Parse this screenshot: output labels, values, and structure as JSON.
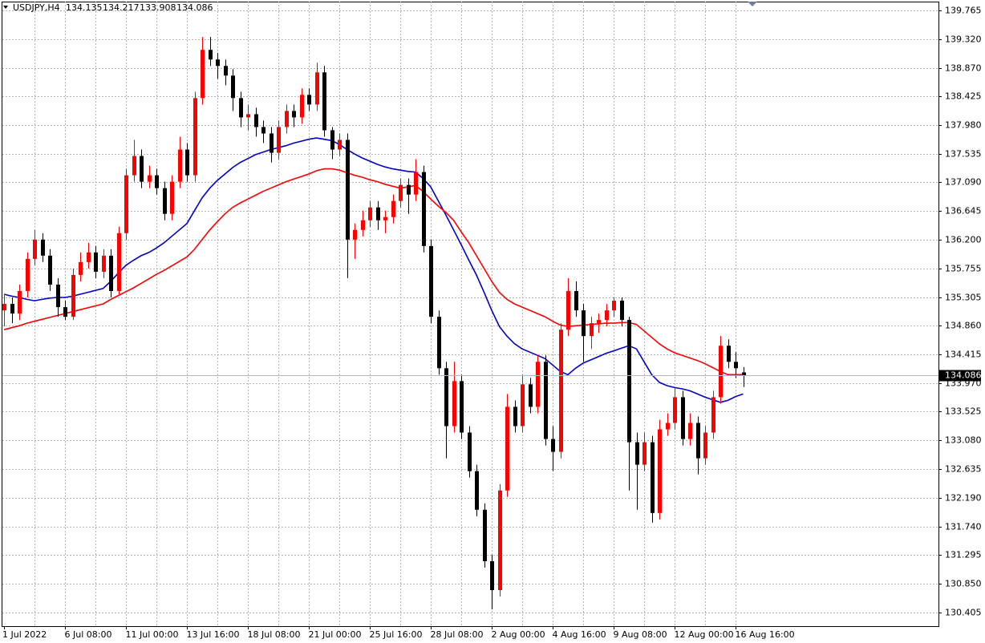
{
  "chart_data": {
    "type": "candlestick",
    "symbol": "USDJPY,H4",
    "ylim": [
      130.19,
      139.9
    ],
    "yticks": [
      139.765,
      {
        "value": 139.32,
        "label": "139.320"
      },
      {
        "value": 138.87,
        "label": "138.870"
      },
      138.425,
      {
        "value": 137.98,
        "label": "137.980"
      },
      137.535,
      {
        "value": 137.09,
        "label": "137.090"
      },
      136.645,
      {
        "value": 136.2,
        "label": "136.200"
      },
      135.755,
      135.305,
      {
        "value": 134.86,
        "label": "134.860"
      },
      134.415,
      {
        "value": 133.97,
        "label": "133.970"
      },
      133.525,
      {
        "value": 133.08,
        "label": "133.080"
      },
      132.635,
      {
        "value": 132.19,
        "label": "132.190"
      },
      {
        "value": 131.74,
        "label": "131.740"
      },
      131.295,
      {
        "value": 130.85,
        "label": "130.850"
      },
      130.405
    ],
    "grid": true,
    "up_color": "#ff0000",
    "down_color": "#000000",
    "last_price": 134.086,
    "categories": [
      "1 Jul 2022",
      null,
      null,
      null,
      null,
      null,
      null,
      null,
      "6 Jul 08:00",
      null,
      null,
      null,
      null,
      null,
      null,
      null,
      "11 Jul 00:00",
      null,
      null,
      null,
      null,
      null,
      null,
      null,
      "13 Jul 16:00",
      null,
      null,
      null,
      null,
      null,
      null,
      null,
      "18 Jul 08:00",
      null,
      null,
      null,
      null,
      null,
      null,
      null,
      "21 Jul 00:00",
      null,
      null,
      null,
      null,
      null,
      null,
      null,
      "25 Jul 16:00",
      null,
      null,
      null,
      null,
      null,
      null,
      null,
      "28 Jul 08:00",
      null,
      null,
      null,
      null,
      null,
      null,
      null,
      "2 Aug 00:00",
      null,
      null,
      null,
      null,
      null,
      null,
      null,
      "4 Aug 16:00",
      null,
      null,
      null,
      null,
      null,
      null,
      null,
      "9 Aug 08:00",
      null,
      null,
      null,
      null,
      null,
      null,
      null,
      "12 Aug 00:00",
      null,
      null,
      null,
      null,
      null,
      null,
      null,
      "16 Aug 16:00",
      null
    ],
    "ohlc": [
      [
        135.1,
        135.35,
        134.85,
        135.2
      ],
      [
        135.2,
        135.3,
        134.9,
        135.05
      ],
      [
        135.05,
        135.5,
        134.95,
        135.4
      ],
      [
        135.4,
        136.0,
        135.3,
        135.9
      ],
      [
        135.9,
        136.35,
        135.8,
        136.2
      ],
      [
        136.2,
        136.3,
        135.85,
        135.95
      ],
      [
        135.95,
        136.05,
        135.4,
        135.5
      ],
      [
        135.5,
        135.6,
        135.0,
        135.15
      ],
      [
        135.15,
        135.25,
        134.95,
        135.0
      ],
      [
        135.0,
        135.75,
        134.95,
        135.65
      ],
      [
        135.65,
        136.0,
        135.55,
        135.85
      ],
      [
        135.85,
        136.15,
        135.75,
        136.0
      ],
      [
        136.0,
        136.1,
        135.6,
        135.7
      ],
      [
        135.7,
        136.05,
        135.6,
        135.95
      ],
      [
        135.95,
        136.05,
        135.3,
        135.4
      ],
      [
        135.4,
        136.4,
        135.35,
        136.3
      ],
      [
        136.3,
        137.3,
        136.2,
        137.2
      ],
      [
        137.2,
        137.75,
        137.1,
        137.5
      ],
      [
        137.5,
        137.6,
        137.0,
        137.1
      ],
      [
        137.1,
        137.35,
        137.0,
        137.2
      ],
      [
        137.2,
        137.3,
        136.9,
        137.0
      ],
      [
        137.0,
        137.1,
        136.5,
        136.6
      ],
      [
        136.6,
        137.2,
        136.5,
        137.1
      ],
      [
        137.1,
        137.8,
        137.0,
        137.6
      ],
      [
        137.6,
        137.7,
        137.1,
        137.2
      ],
      [
        137.2,
        138.5,
        137.1,
        138.4
      ],
      [
        138.4,
        139.35,
        138.3,
        139.15
      ],
      [
        139.15,
        139.35,
        138.9,
        139.0
      ],
      [
        139.0,
        139.1,
        138.7,
        138.9
      ],
      [
        138.9,
        139.0,
        138.6,
        138.75
      ],
      [
        138.75,
        138.85,
        138.2,
        138.4
      ],
      [
        138.4,
        138.5,
        137.95,
        138.1
      ],
      [
        138.1,
        138.3,
        137.9,
        138.15
      ],
      [
        138.15,
        138.25,
        137.8,
        137.95
      ],
      [
        137.95,
        138.05,
        137.7,
        137.85
      ],
      [
        137.85,
        137.95,
        137.4,
        137.55
      ],
      [
        137.55,
        138.05,
        137.45,
        137.95
      ],
      [
        137.95,
        138.3,
        137.85,
        138.2
      ],
      [
        138.2,
        138.3,
        137.95,
        138.1
      ],
      [
        138.1,
        138.55,
        138.0,
        138.45
      ],
      [
        138.45,
        138.55,
        138.2,
        138.3
      ],
      [
        138.3,
        138.95,
        138.2,
        138.8
      ],
      [
        138.8,
        138.9,
        137.8,
        137.9
      ],
      [
        137.9,
        137.95,
        137.45,
        137.6
      ],
      [
        137.6,
        137.85,
        137.5,
        137.75
      ],
      [
        137.75,
        137.85,
        135.6,
        136.2
      ],
      [
        136.2,
        136.45,
        135.9,
        136.35
      ],
      [
        136.35,
        136.65,
        136.25,
        136.5
      ],
      [
        136.5,
        136.8,
        136.4,
        136.7
      ],
      [
        136.7,
        136.8,
        136.35,
        136.5
      ],
      [
        136.5,
        136.65,
        136.3,
        136.55
      ],
      [
        136.55,
        136.9,
        136.45,
        136.8
      ],
      [
        136.8,
        137.15,
        136.7,
        137.05
      ],
      [
        137.05,
        137.15,
        136.6,
        136.9
      ],
      [
        136.9,
        137.45,
        136.8,
        137.25
      ],
      [
        137.25,
        137.35,
        136.0,
        136.1
      ],
      [
        136.1,
        136.2,
        134.9,
        135.0
      ],
      [
        135.0,
        135.1,
        134.1,
        134.2
      ],
      [
        134.2,
        134.3,
        132.8,
        133.3
      ],
      [
        133.3,
        134.3,
        133.2,
        134.0
      ],
      [
        134.0,
        134.1,
        133.1,
        133.2
      ],
      [
        133.2,
        133.3,
        132.5,
        132.6
      ],
      [
        132.6,
        132.7,
        131.9,
        132.0
      ],
      [
        132.0,
        132.1,
        131.1,
        131.2
      ],
      [
        131.2,
        131.3,
        130.45,
        130.75
      ],
      [
        130.75,
        132.4,
        130.65,
        132.3
      ],
      [
        132.3,
        133.8,
        132.2,
        133.6
      ],
      [
        133.6,
        133.7,
        133.2,
        133.3
      ],
      [
        133.3,
        134.1,
        133.2,
        133.95
      ],
      [
        133.95,
        134.05,
        133.5,
        133.6
      ],
      [
        133.6,
        134.4,
        133.5,
        134.3
      ],
      [
        134.3,
        134.4,
        133.0,
        133.1
      ],
      [
        133.1,
        133.3,
        132.6,
        132.9
      ],
      [
        132.9,
        134.9,
        132.8,
        134.8
      ],
      [
        134.8,
        135.6,
        134.7,
        135.4
      ],
      [
        135.4,
        135.55,
        135.0,
        135.1
      ],
      [
        135.1,
        135.2,
        134.3,
        134.7
      ],
      [
        134.7,
        135.0,
        134.5,
        134.9
      ],
      [
        134.9,
        135.05,
        134.75,
        134.95
      ],
      [
        134.95,
        135.2,
        134.85,
        135.1
      ],
      [
        135.1,
        135.3,
        135.0,
        135.25
      ],
      [
        135.25,
        135.3,
        134.85,
        134.95
      ],
      [
        134.95,
        135.0,
        132.3,
        133.05
      ],
      [
        133.05,
        133.2,
        132.0,
        132.7
      ],
      [
        132.7,
        133.2,
        132.6,
        133.05
      ],
      [
        133.05,
        133.15,
        131.8,
        131.95
      ],
      [
        131.95,
        133.4,
        131.85,
        133.25
      ],
      [
        133.25,
        133.5,
        133.15,
        133.35
      ],
      [
        133.35,
        133.9,
        133.25,
        133.75
      ],
      [
        133.75,
        133.85,
        133.0,
        133.1
      ],
      [
        133.1,
        133.5,
        133.0,
        133.35
      ],
      [
        133.35,
        133.45,
        132.55,
        132.8
      ],
      [
        132.8,
        133.3,
        132.7,
        133.2
      ],
      [
        133.2,
        133.85,
        133.1,
        133.75
      ],
      [
        133.75,
        134.7,
        133.65,
        134.55
      ],
      [
        134.55,
        134.65,
        134.2,
        134.3
      ],
      [
        134.3,
        134.45,
        134.05,
        134.2
      ],
      [
        134.135,
        134.217,
        133.908,
        134.086
      ]
    ],
    "series": [
      {
        "color": "#0000cc",
        "values": [
          135.35,
          135.32,
          135.3,
          135.27,
          135.25,
          135.27,
          135.29,
          135.3,
          135.3,
          135.32,
          135.35,
          135.38,
          135.41,
          135.44,
          135.55,
          135.68,
          135.8,
          135.88,
          135.95,
          136.0,
          136.07,
          136.15,
          136.25,
          136.35,
          136.45,
          136.65,
          136.85,
          137.0,
          137.12,
          137.22,
          137.32,
          137.4,
          137.46,
          137.52,
          137.56,
          137.6,
          137.63,
          137.66,
          137.7,
          137.73,
          137.76,
          137.78,
          137.76,
          137.74,
          137.68,
          137.6,
          137.53,
          137.47,
          137.42,
          137.37,
          137.33,
          137.3,
          137.28,
          137.26,
          137.25,
          137.15,
          137.02,
          136.8,
          136.58,
          136.35,
          136.12,
          135.88,
          135.65,
          135.38,
          135.1,
          134.85,
          134.7,
          134.58,
          134.5,
          134.45,
          134.4,
          134.35,
          134.25,
          134.15,
          134.1,
          134.2,
          134.28,
          134.33,
          134.38,
          134.43,
          134.47,
          134.51,
          134.55,
          134.5,
          134.3,
          134.1,
          133.98,
          133.93,
          133.9,
          133.88,
          133.85,
          133.8,
          133.75,
          133.71,
          133.67,
          133.7,
          133.76,
          133.8
        ]
      },
      {
        "color": "#ff0000",
        "values": [
          134.8,
          134.83,
          134.86,
          134.9,
          134.93,
          134.96,
          134.99,
          135.02,
          135.05,
          135.08,
          135.11,
          135.14,
          135.17,
          135.2,
          135.27,
          135.33,
          135.39,
          135.45,
          135.52,
          135.59,
          135.66,
          135.72,
          135.79,
          135.86,
          135.93,
          136.05,
          136.2,
          136.35,
          136.48,
          136.6,
          136.7,
          136.77,
          136.83,
          136.89,
          136.95,
          137.0,
          137.05,
          137.1,
          137.14,
          137.18,
          137.22,
          137.27,
          137.3,
          137.3,
          137.28,
          137.24,
          137.2,
          137.17,
          137.13,
          137.1,
          137.06,
          137.03,
          137.0,
          137.02,
          137.04,
          136.95,
          136.83,
          136.72,
          136.62,
          136.5,
          136.32,
          136.15,
          135.95,
          135.75,
          135.55,
          135.38,
          135.27,
          135.2,
          135.15,
          135.1,
          135.05,
          135.0,
          134.93,
          134.87,
          134.85,
          134.86,
          134.87,
          134.88,
          134.89,
          134.9,
          134.9,
          134.91,
          134.91,
          134.88,
          134.78,
          134.68,
          134.58,
          134.5,
          134.44,
          134.4,
          134.36,
          134.32,
          134.27,
          134.21,
          134.15,
          134.1,
          134.1,
          134.1
        ]
      }
    ]
  }
}
